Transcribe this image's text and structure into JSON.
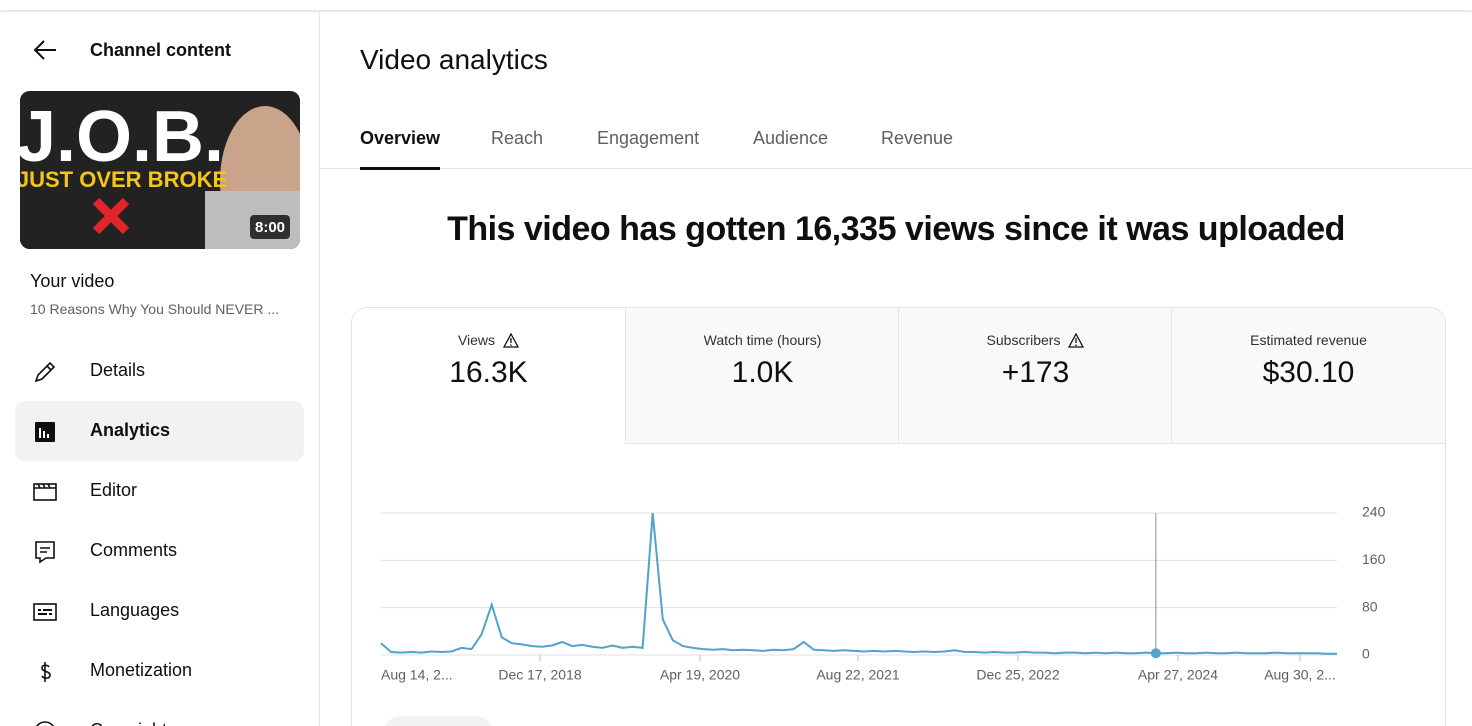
{
  "sidebar": {
    "back_label": "Channel content",
    "thumbnail": {
      "title": "J.O.B.",
      "subtitle": "JUST OVER BROKE",
      "duration": "8:00"
    },
    "your_video": "Your video",
    "video_title": "10 Reasons Why You Should NEVER ...",
    "nav": [
      "Details",
      "Analytics",
      "Editor",
      "Comments",
      "Languages",
      "Monetization",
      "Copyright"
    ],
    "selected": 1
  },
  "header": {
    "title": "Video analytics"
  },
  "tabs": {
    "items": [
      "Overview",
      "Reach",
      "Engagement",
      "Audience",
      "Revenue"
    ],
    "selected": 0
  },
  "headline": "This video has gotten 16,335 views since it was uploaded",
  "metrics": [
    {
      "label": "Views",
      "value": "16.3K",
      "warning": true
    },
    {
      "label": "Watch time (hours)",
      "value": "1.0K",
      "warning": false
    },
    {
      "label": "Subscribers",
      "value": "+173",
      "warning": true
    },
    {
      "label": "Estimated revenue",
      "value": "$30.10",
      "warning": false
    }
  ],
  "chart_data": {
    "type": "line",
    "color": "#4fa3cc",
    "x_labels": [
      "Aug 14, 2...",
      "Dec 17, 2018",
      "Apr 19, 2020",
      "Aug 22, 2021",
      "Dec 25, 2022",
      "Apr 27, 2024",
      "Aug 30, 2..."
    ],
    "values": [
      20,
      5,
      4,
      5,
      4,
      6,
      5,
      6,
      12,
      10,
      35,
      85,
      30,
      20,
      18,
      15,
      14,
      16,
      22,
      15,
      17,
      14,
      12,
      16,
      12,
      14,
      12,
      240,
      60,
      25,
      15,
      12,
      10,
      9,
      10,
      8,
      9,
      8,
      7,
      9,
      8,
      10,
      22,
      9,
      8,
      7,
      8,
      7,
      6,
      7,
      6,
      7,
      6,
      5,
      6,
      5,
      6,
      8,
      5,
      5,
      4,
      5,
      4,
      4,
      5,
      4,
      4,
      3,
      4,
      4,
      3,
      4,
      3,
      4,
      3,
      3,
      4,
      3,
      3,
      4,
      3,
      3,
      4,
      3,
      3,
      4,
      3,
      3,
      3,
      4,
      3,
      3,
      3,
      3,
      2,
      2
    ],
    "highlight_index": 77,
    "ylim": [
      0,
      240
    ],
    "yticks": [
      0,
      80,
      160,
      240
    ],
    "grid": true
  }
}
